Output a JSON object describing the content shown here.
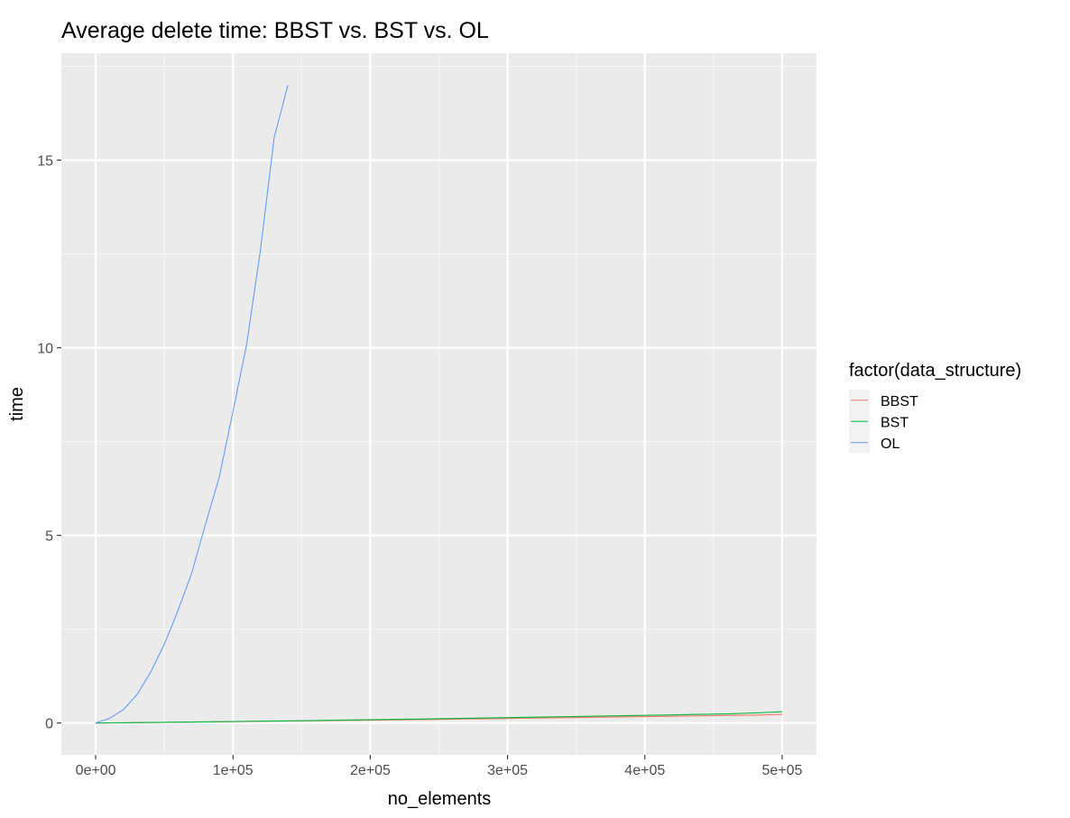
{
  "chart_data": {
    "type": "line",
    "title": "Average delete time: BBST vs. BST vs. OL",
    "xlabel": "no_elements",
    "ylabel": "time",
    "xlim": [
      -25000,
      525000
    ],
    "ylim": [
      -0.85,
      17.85
    ],
    "x_ticks": [
      0,
      100000,
      200000,
      300000,
      400000,
      500000
    ],
    "x_tick_labels": [
      "0e+00",
      "1e+05",
      "2e+05",
      "3e+05",
      "4e+05",
      "5e+05"
    ],
    "y_ticks": [
      0,
      5,
      10,
      15
    ],
    "y_tick_labels": [
      "0",
      "5",
      "10",
      "15"
    ],
    "grid": true,
    "legend": {
      "title": "factor(data_structure)",
      "position": "right"
    },
    "series": [
      {
        "name": "BBST",
        "color": "#F8766D",
        "x": [
          0,
          10000,
          20000,
          30000,
          40000,
          50000,
          60000,
          70000,
          80000,
          90000,
          100000,
          120000,
          140000,
          160000,
          180000,
          200000,
          220000,
          240000,
          260000,
          280000,
          300000,
          320000,
          340000,
          360000,
          380000,
          400000,
          420000,
          440000,
          460000,
          480000,
          500000
        ],
        "values": [
          0.0,
          0.002,
          0.005,
          0.008,
          0.011,
          0.015,
          0.019,
          0.023,
          0.027,
          0.031,
          0.035,
          0.043,
          0.051,
          0.059,
          0.067,
          0.075,
          0.084,
          0.093,
          0.102,
          0.111,
          0.12,
          0.13,
          0.14,
          0.15,
          0.16,
          0.17,
          0.18,
          0.19,
          0.2,
          0.21,
          0.23
        ]
      },
      {
        "name": "BST",
        "color": "#00BA38",
        "x": [
          0,
          10000,
          20000,
          30000,
          40000,
          50000,
          60000,
          70000,
          80000,
          90000,
          100000,
          120000,
          140000,
          160000,
          180000,
          200000,
          220000,
          240000,
          260000,
          280000,
          300000,
          320000,
          340000,
          360000,
          380000,
          400000,
          420000,
          440000,
          460000,
          480000,
          500000
        ],
        "values": [
          0.0,
          0.003,
          0.006,
          0.01,
          0.014,
          0.018,
          0.022,
          0.026,
          0.03,
          0.034,
          0.038,
          0.047,
          0.056,
          0.066,
          0.076,
          0.086,
          0.097,
          0.108,
          0.119,
          0.13,
          0.142,
          0.154,
          0.166,
          0.178,
          0.19,
          0.203,
          0.216,
          0.229,
          0.243,
          0.268,
          0.3
        ]
      },
      {
        "name": "OL",
        "color": "#619CFF",
        "x": [
          0,
          10000,
          20000,
          30000,
          40000,
          50000,
          60000,
          70000,
          80000,
          90000,
          100000,
          110000,
          120000,
          130000,
          140000
        ],
        "values": [
          0.0,
          0.12,
          0.35,
          0.75,
          1.35,
          2.1,
          3.0,
          4.0,
          5.3,
          6.55,
          8.3,
          10.1,
          12.6,
          15.6,
          17.0
        ]
      }
    ]
  }
}
